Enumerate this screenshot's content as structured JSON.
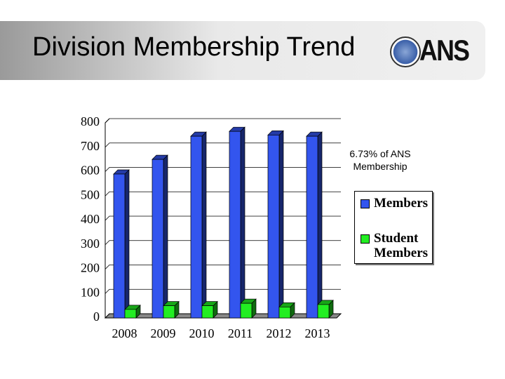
{
  "header": {
    "title": "Division Membership Trend",
    "logo_text": "ANS"
  },
  "chart_data": {
    "type": "bar",
    "categories": [
      "2008",
      "2009",
      "2010",
      "2011",
      "2012",
      "2013"
    ],
    "series": [
      {
        "name": "Members",
        "color": "#3355ee",
        "values": [
          590,
          650,
          745,
          765,
          750,
          745
        ]
      },
      {
        "name": "Student Members",
        "color": "#22ee22",
        "values": [
          35,
          50,
          50,
          60,
          45,
          55
        ]
      }
    ],
    "ylim": [
      0,
      800
    ],
    "yticks": [
      0,
      100,
      200,
      300,
      400,
      500,
      600,
      700,
      800
    ],
    "grid": true,
    "annotation": "6.73% of ANS Membership"
  }
}
